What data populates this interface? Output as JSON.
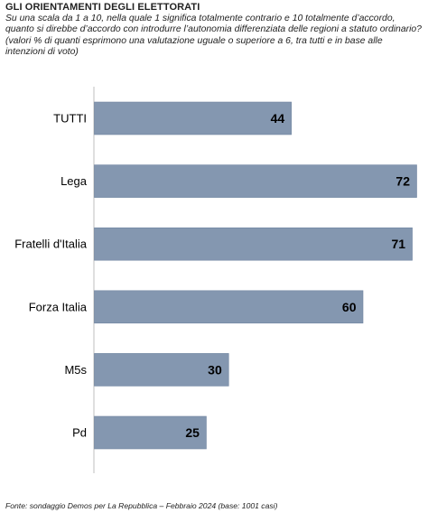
{
  "header": {
    "title": "GLI ORIENTAMENTI DEGLI ELETTORATI",
    "subtitle": "Su una scala da 1 a 10, nella quale 1 significa totalmente contrario e 10 totalmente d’accordo,\nquanto si direbbe d’accordo con introdurre l’autonomia differenziata delle regioni a statuto ordinario?\n(valori % di quanti esprimono una valutazione uguale o superiore a 6, tra tutti e in base alle\nintenzioni di voto)"
  },
  "chart_data": {
    "type": "bar",
    "orientation": "horizontal",
    "categories": [
      "TUTTI",
      "Lega",
      "Fratelli d'Italia",
      "Forza Italia",
      "M5s",
      "Pd"
    ],
    "values": [
      44,
      72,
      71,
      60,
      30,
      25
    ],
    "xlim": [
      0,
      72
    ],
    "grid": false,
    "legend": "none",
    "colors": {
      "bar": "#8497b0",
      "bar_stroke": "#6f84a0",
      "axis": "#bfbfbf",
      "label": "#000000"
    }
  },
  "footer": {
    "source": "Fonte: sondaggio Demos per La Repubblica – Febbraio 2024 (base: 1001 casi)"
  }
}
